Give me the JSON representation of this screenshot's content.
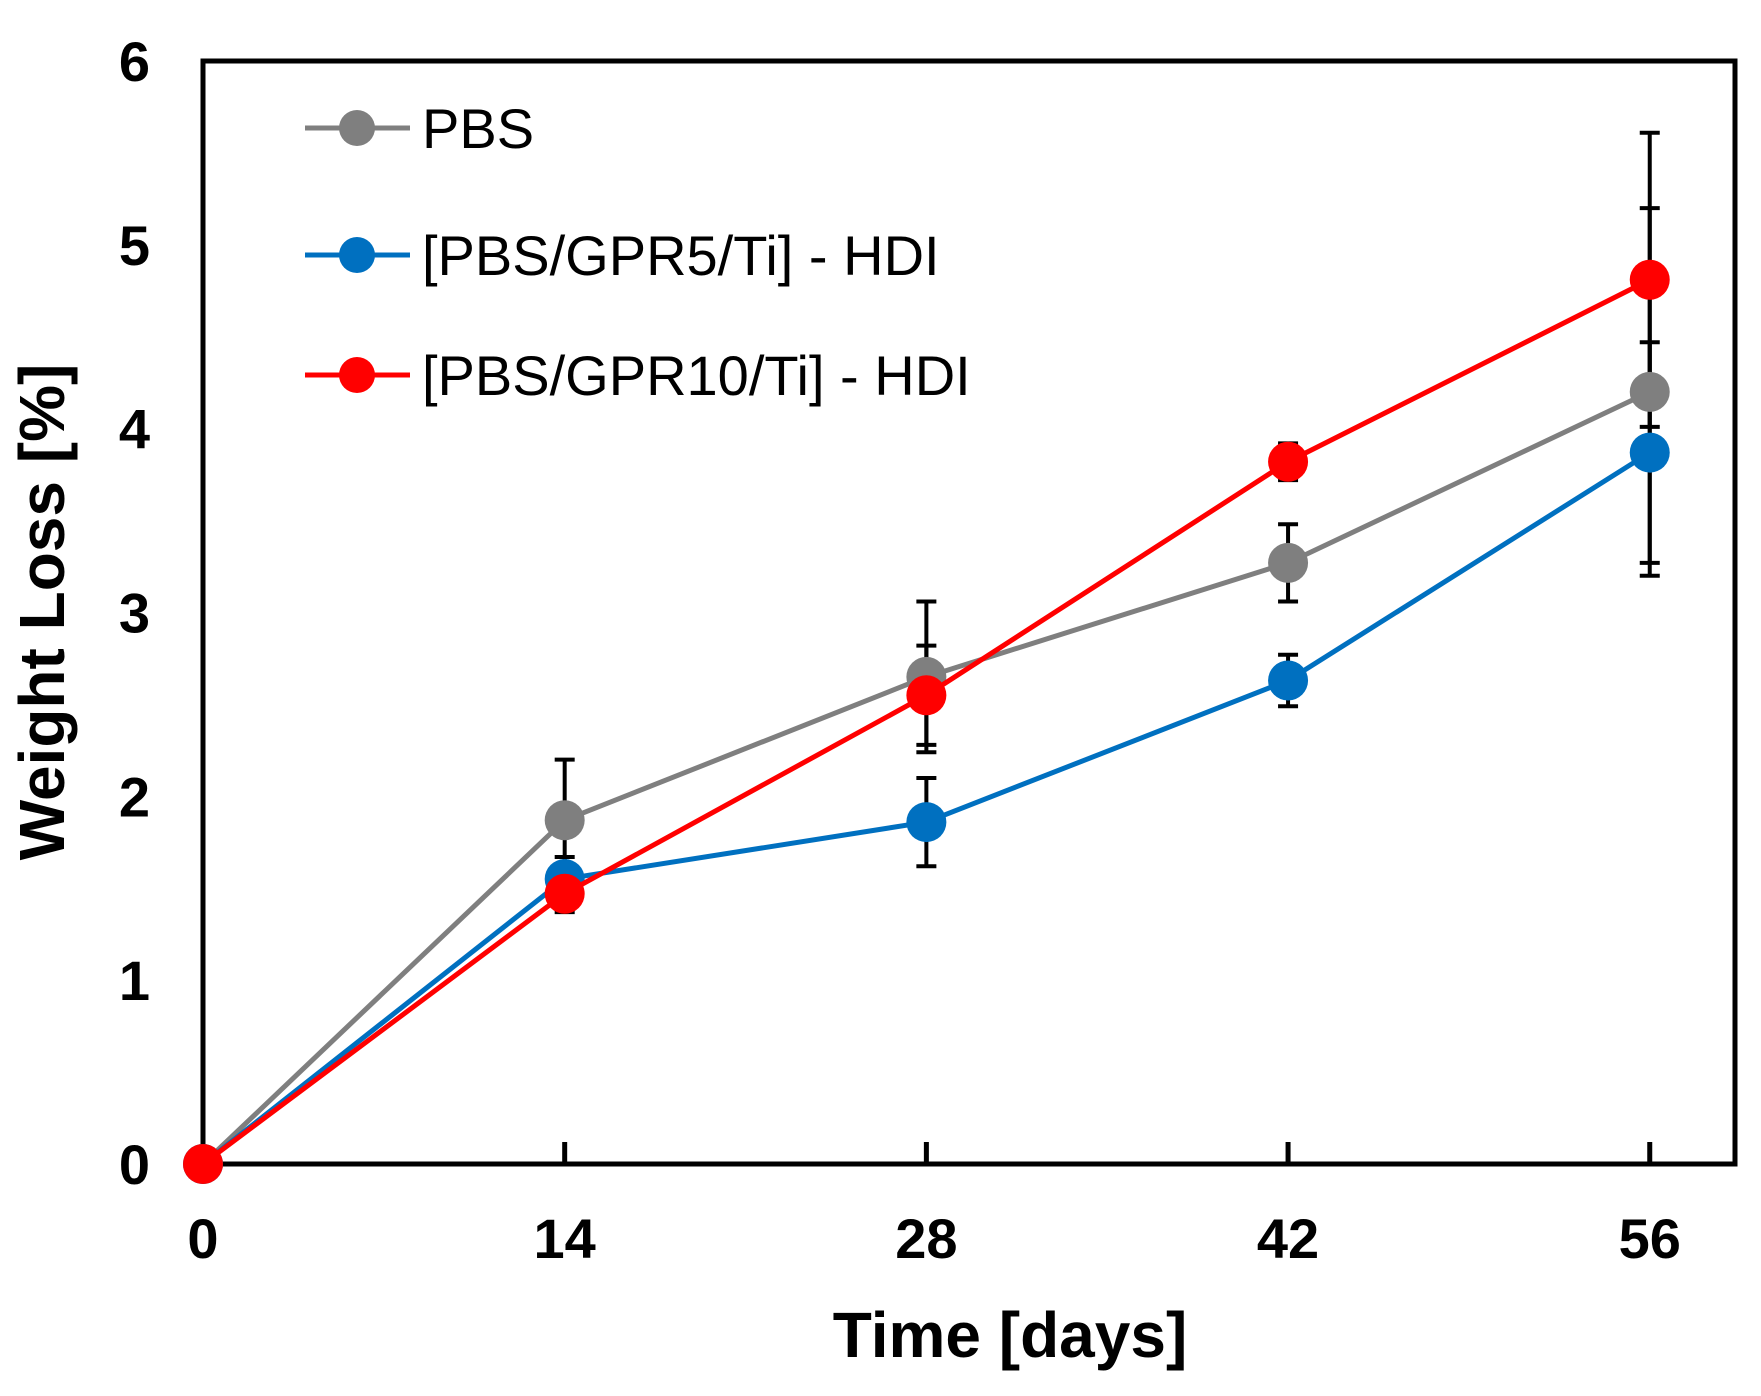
{
  "chart_data": {
    "type": "line",
    "title": "",
    "xlabel": "Time [days]",
    "ylabel": "Weight Loss [%]",
    "x": [
      0,
      14,
      28,
      42,
      56
    ],
    "xticks": [
      "0",
      "14",
      "28",
      "42",
      "56"
    ],
    "yticks": [
      "0",
      "1",
      "2",
      "3",
      "4",
      "5",
      "6"
    ],
    "xlim": [
      0,
      59.3
    ],
    "ylim": [
      0,
      6
    ],
    "grid": false,
    "legend_position": "top-left",
    "series": [
      {
        "name": "PBS",
        "color": "#7f7f7f",
        "values": [
          0,
          1.87,
          2.65,
          3.27,
          4.2
        ],
        "errors": [
          0,
          0.33,
          0.41,
          0.21,
          1.0
        ]
      },
      {
        "name": "[PBS/GPR5/Ti] - HDI",
        "color": "#0070c0",
        "values": [
          0,
          1.55,
          1.86,
          2.63,
          3.87
        ],
        "errors": [
          0,
          0.12,
          0.24,
          0.14,
          0.6
        ]
      },
      {
        "name": "[PBS/GPR10/Ti] - HDI",
        "color": "#ff0000",
        "values": [
          0,
          1.47,
          2.55,
          3.82,
          4.81
        ],
        "errors": [
          0,
          0.1,
          0.27,
          0.1,
          0.8
        ]
      }
    ]
  }
}
